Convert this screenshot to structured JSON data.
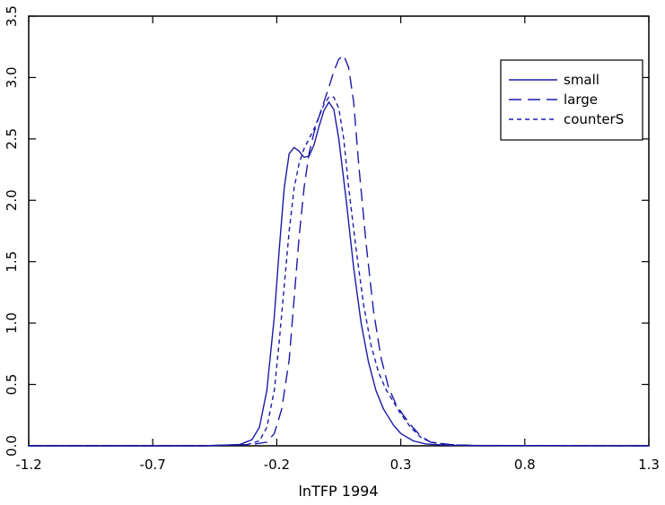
{
  "chart_data": {
    "type": "line",
    "title": "",
    "xlabel": "lnTFP 1994",
    "ylabel": "",
    "xlim": [
      -1.2,
      1.3
    ],
    "ylim": [
      0,
      3.5
    ],
    "x_ticks": [
      -1.2,
      -0.7,
      -0.2,
      0.3,
      0.8,
      1.3
    ],
    "x_tick_labels": [
      "-1.2",
      "-0.7",
      "-0.2",
      "0.3",
      "0.8",
      "1.3"
    ],
    "y_ticks": [
      0,
      0.5,
      1.0,
      1.5,
      2.0,
      2.5,
      3.0,
      3.5
    ],
    "y_tick_labels": [
      "0.0",
      "0.5",
      "1.0",
      "1.5",
      "2.0",
      "2.5",
      "3.0",
      "3.5"
    ],
    "grid": false,
    "legend_position": "top-right",
    "line_color": "#1a1aa8",
    "series": [
      {
        "name": "small",
        "style": "solid",
        "points": [
          [
            -1.2,
            0
          ],
          [
            -0.5,
            0
          ],
          [
            -0.35,
            0.01
          ],
          [
            -0.3,
            0.05
          ],
          [
            -0.27,
            0.15
          ],
          [
            -0.24,
            0.45
          ],
          [
            -0.21,
            1.05
          ],
          [
            -0.19,
            1.6
          ],
          [
            -0.17,
            2.1
          ],
          [
            -0.15,
            2.38
          ],
          [
            -0.13,
            2.43
          ],
          [
            -0.11,
            2.4
          ],
          [
            -0.09,
            2.35
          ],
          [
            -0.07,
            2.36
          ],
          [
            -0.05,
            2.45
          ],
          [
            -0.03,
            2.6
          ],
          [
            -0.01,
            2.73
          ],
          [
            0.01,
            2.8
          ],
          [
            0.03,
            2.74
          ],
          [
            0.05,
            2.5
          ],
          [
            0.08,
            2.0
          ],
          [
            0.11,
            1.45
          ],
          [
            0.14,
            1.0
          ],
          [
            0.17,
            0.68
          ],
          [
            0.2,
            0.45
          ],
          [
            0.23,
            0.3
          ],
          [
            0.27,
            0.17
          ],
          [
            0.3,
            0.1
          ],
          [
            0.35,
            0.04
          ],
          [
            0.4,
            0.015
          ],
          [
            0.5,
            0.003
          ],
          [
            1.3,
            0
          ]
        ]
      },
      {
        "name": "large",
        "style": "longdash",
        "points": [
          [
            -1.2,
            0
          ],
          [
            -0.5,
            0
          ],
          [
            -0.3,
            0.01
          ],
          [
            -0.24,
            0.03
          ],
          [
            -0.21,
            0.1
          ],
          [
            -0.18,
            0.3
          ],
          [
            -0.15,
            0.7
          ],
          [
            -0.13,
            1.2
          ],
          [
            -0.11,
            1.7
          ],
          [
            -0.09,
            2.1
          ],
          [
            -0.07,
            2.38
          ],
          [
            -0.05,
            2.55
          ],
          [
            -0.03,
            2.68
          ],
          [
            -0.01,
            2.8
          ],
          [
            0.01,
            2.92
          ],
          [
            0.03,
            3.05
          ],
          [
            0.05,
            3.15
          ],
          [
            0.07,
            3.18
          ],
          [
            0.09,
            3.08
          ],
          [
            0.11,
            2.8
          ],
          [
            0.13,
            2.3
          ],
          [
            0.16,
            1.65
          ],
          [
            0.19,
            1.1
          ],
          [
            0.22,
            0.72
          ],
          [
            0.25,
            0.48
          ],
          [
            0.28,
            0.34
          ],
          [
            0.31,
            0.25
          ],
          [
            0.34,
            0.17
          ],
          [
            0.38,
            0.08
          ],
          [
            0.42,
            0.03
          ],
          [
            0.5,
            0.01
          ],
          [
            0.6,
            0.002
          ],
          [
            1.3,
            0
          ]
        ]
      },
      {
        "name": "counterS",
        "style": "shortdash",
        "points": [
          [
            -1.2,
            0
          ],
          [
            -0.5,
            0
          ],
          [
            -0.32,
            0.01
          ],
          [
            -0.27,
            0.04
          ],
          [
            -0.24,
            0.15
          ],
          [
            -0.21,
            0.45
          ],
          [
            -0.19,
            0.85
          ],
          [
            -0.17,
            1.3
          ],
          [
            -0.15,
            1.75
          ],
          [
            -0.13,
            2.1
          ],
          [
            -0.11,
            2.3
          ],
          [
            -0.09,
            2.42
          ],
          [
            -0.07,
            2.5
          ],
          [
            -0.05,
            2.58
          ],
          [
            -0.03,
            2.68
          ],
          [
            -0.01,
            2.78
          ],
          [
            0.01,
            2.84
          ],
          [
            0.03,
            2.84
          ],
          [
            0.05,
            2.75
          ],
          [
            0.07,
            2.5
          ],
          [
            0.09,
            2.1
          ],
          [
            0.12,
            1.6
          ],
          [
            0.15,
            1.15
          ],
          [
            0.18,
            0.82
          ],
          [
            0.21,
            0.6
          ],
          [
            0.24,
            0.46
          ],
          [
            0.27,
            0.36
          ],
          [
            0.3,
            0.26
          ],
          [
            0.34,
            0.15
          ],
          [
            0.38,
            0.07
          ],
          [
            0.42,
            0.03
          ],
          [
            0.5,
            0.008
          ],
          [
            0.6,
            0.001
          ],
          [
            1.3,
            0
          ]
        ]
      }
    ]
  }
}
